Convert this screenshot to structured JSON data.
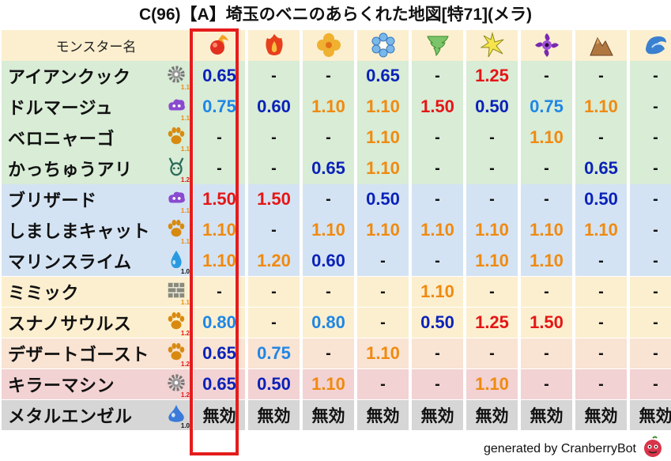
{
  "title": "C(96)【A】埼玉のベニのあらくれた地図[特71](メラ)",
  "header_label": "モンスター名",
  "element_icons": [
    {
      "name": "mera-fire-orb-icon"
    },
    {
      "name": "gira-flame-icon"
    },
    {
      "name": "io-clover-icon"
    },
    {
      "name": "hyado-snowflake-icon"
    },
    {
      "name": "bagi-tornado-icon"
    },
    {
      "name": "dein-lightning-icon"
    },
    {
      "name": "dorma-dark-swirl-icon"
    },
    {
      "name": "jibaria-rock-icon"
    },
    {
      "name": "water-wave-icon"
    }
  ],
  "monsters": [
    {
      "name": "アイアンクック",
      "icon": "gear-icon",
      "lvl": "1.1",
      "lvl_color": "#f08a10",
      "bg": "#d8ecd6",
      "values": [
        [
          "0.65",
          "blue"
        ],
        [
          "-",
          "dash"
        ],
        [
          "-",
          "dash"
        ],
        [
          "0.65",
          "blue"
        ],
        [
          "-",
          "dash"
        ],
        [
          "1.25",
          "red"
        ],
        [
          "-",
          "dash"
        ],
        [
          "-",
          "dash"
        ],
        [
          "-",
          "dash"
        ]
      ]
    },
    {
      "name": "ドルマージュ",
      "icon": "purple-cloud-icon",
      "lvl": "1.1",
      "lvl_color": "#f08a10",
      "bg": "#d8ecd6",
      "values": [
        [
          "0.75",
          "lblue"
        ],
        [
          "0.60",
          "blue"
        ],
        [
          "1.10",
          "orange"
        ],
        [
          "1.10",
          "orange"
        ],
        [
          "1.50",
          "red"
        ],
        [
          "0.50",
          "blue"
        ],
        [
          "0.75",
          "lblue"
        ],
        [
          "1.10",
          "orange"
        ],
        [
          "-",
          "dash"
        ]
      ]
    },
    {
      "name": "ベロニャーゴ",
      "icon": "paw-icon",
      "lvl": "1.1",
      "lvl_color": "#f08a10",
      "bg": "#d8ecd6",
      "values": [
        [
          "-",
          "dash"
        ],
        [
          "-",
          "dash"
        ],
        [
          "-",
          "dash"
        ],
        [
          "1.10",
          "orange"
        ],
        [
          "-",
          "dash"
        ],
        [
          "-",
          "dash"
        ],
        [
          "1.10",
          "orange"
        ],
        [
          "-",
          "dash"
        ],
        [
          "-",
          "dash"
        ]
      ]
    },
    {
      "name": "かっちゅうアリ",
      "icon": "insect-icon",
      "lvl": "1.2",
      "lvl_color": "#e51616",
      "bg": "#d8ecd6",
      "values": [
        [
          "-",
          "dash"
        ],
        [
          "-",
          "dash"
        ],
        [
          "0.65",
          "blue"
        ],
        [
          "1.10",
          "orange"
        ],
        [
          "-",
          "dash"
        ],
        [
          "-",
          "dash"
        ],
        [
          "-",
          "dash"
        ],
        [
          "0.65",
          "blue"
        ],
        [
          "-",
          "dash"
        ]
      ]
    },
    {
      "name": "ブリザード",
      "icon": "purple-cloud-icon",
      "lvl": "1.1",
      "lvl_color": "#f08a10",
      "bg": "#d4e3f3",
      "values": [
        [
          "1.50",
          "red"
        ],
        [
          "1.50",
          "red"
        ],
        [
          "-",
          "dash"
        ],
        [
          "0.50",
          "blue"
        ],
        [
          "-",
          "dash"
        ],
        [
          "-",
          "dash"
        ],
        [
          "-",
          "dash"
        ],
        [
          "0.50",
          "blue"
        ],
        [
          "-",
          "dash"
        ]
      ]
    },
    {
      "name": "しましまキャット",
      "icon": "paw-icon",
      "lvl": "1.1",
      "lvl_color": "#f08a10",
      "bg": "#d4e3f3",
      "values": [
        [
          "1.10",
          "orange"
        ],
        [
          "-",
          "dash"
        ],
        [
          "1.10",
          "orange"
        ],
        [
          "1.10",
          "orange"
        ],
        [
          "1.10",
          "orange"
        ],
        [
          "1.10",
          "orange"
        ],
        [
          "1.10",
          "orange"
        ],
        [
          "1.10",
          "orange"
        ],
        [
          "-",
          "dash"
        ]
      ]
    },
    {
      "name": "マリンスライム",
      "icon": "water-drop-icon",
      "lvl": "1.0",
      "lvl_color": "#111111",
      "bg": "#d4e3f3",
      "values": [
        [
          "1.10",
          "orange"
        ],
        [
          "1.20",
          "orange"
        ],
        [
          "0.60",
          "blue"
        ],
        [
          "-",
          "dash"
        ],
        [
          "-",
          "dash"
        ],
        [
          "1.10",
          "orange"
        ],
        [
          "1.10",
          "orange"
        ],
        [
          "-",
          "dash"
        ],
        [
          "-",
          "dash"
        ]
      ]
    },
    {
      "name": "ミミック",
      "icon": "brick-icon",
      "lvl": "1.1",
      "lvl_color": "#f08a10",
      "bg": "#fcefcf",
      "values": [
        [
          "-",
          "dash"
        ],
        [
          "-",
          "dash"
        ],
        [
          "-",
          "dash"
        ],
        [
          "-",
          "dash"
        ],
        [
          "1.10",
          "orange"
        ],
        [
          "-",
          "dash"
        ],
        [
          "-",
          "dash"
        ],
        [
          "-",
          "dash"
        ],
        [
          "-",
          "dash"
        ]
      ]
    },
    {
      "name": "スナノサウルス",
      "icon": "paw-icon",
      "lvl": "1.2",
      "lvl_color": "#e51616",
      "bg": "#fcefcf",
      "values": [
        [
          "0.80",
          "lblue"
        ],
        [
          "-",
          "dash"
        ],
        [
          "0.80",
          "lblue"
        ],
        [
          "-",
          "dash"
        ],
        [
          "0.50",
          "blue"
        ],
        [
          "1.25",
          "red"
        ],
        [
          "1.50",
          "red"
        ],
        [
          "-",
          "dash"
        ],
        [
          "-",
          "dash"
        ]
      ]
    },
    {
      "name": "デザートゴースト",
      "icon": "paw-icon",
      "lvl": "1.2",
      "lvl_color": "#e51616",
      "bg": "#f9e3d3",
      "values": [
        [
          "0.65",
          "blue"
        ],
        [
          "0.75",
          "lblue"
        ],
        [
          "-",
          "dash"
        ],
        [
          "1.10",
          "orange"
        ],
        [
          "-",
          "dash"
        ],
        [
          "-",
          "dash"
        ],
        [
          "-",
          "dash"
        ],
        [
          "-",
          "dash"
        ],
        [
          "-",
          "dash"
        ]
      ]
    },
    {
      "name": "キラーマシン",
      "icon": "gear-icon",
      "lvl": "1.2",
      "lvl_color": "#e51616",
      "bg": "#f2d2d3",
      "values": [
        [
          "0.65",
          "blue"
        ],
        [
          "0.50",
          "blue"
        ],
        [
          "1.10",
          "orange"
        ],
        [
          "-",
          "dash"
        ],
        [
          "-",
          "dash"
        ],
        [
          "1.10",
          "orange"
        ],
        [
          "-",
          "dash"
        ],
        [
          "-",
          "dash"
        ],
        [
          "-",
          "dash"
        ]
      ]
    },
    {
      "name": "メタルエンゼル",
      "icon": "metal-slime-icon",
      "lvl": "1.0",
      "lvl_color": "#111111",
      "bg": "#d6d6d6",
      "values": [
        [
          "無効",
          "muko"
        ],
        [
          "無効",
          "muko"
        ],
        [
          "無効",
          "muko"
        ],
        [
          "無効",
          "muko"
        ],
        [
          "無効",
          "muko"
        ],
        [
          "無効",
          "muko"
        ],
        [
          "無効",
          "muko"
        ],
        [
          "無効",
          "muko"
        ],
        [
          "無効",
          "muko"
        ]
      ]
    }
  ],
  "colors": {
    "header_bg": "#fcefcf",
    "highlight": "#e51c1c"
  },
  "footer": "generated by CranberryBot",
  "footer_icon": "cranberry-bot-icon"
}
